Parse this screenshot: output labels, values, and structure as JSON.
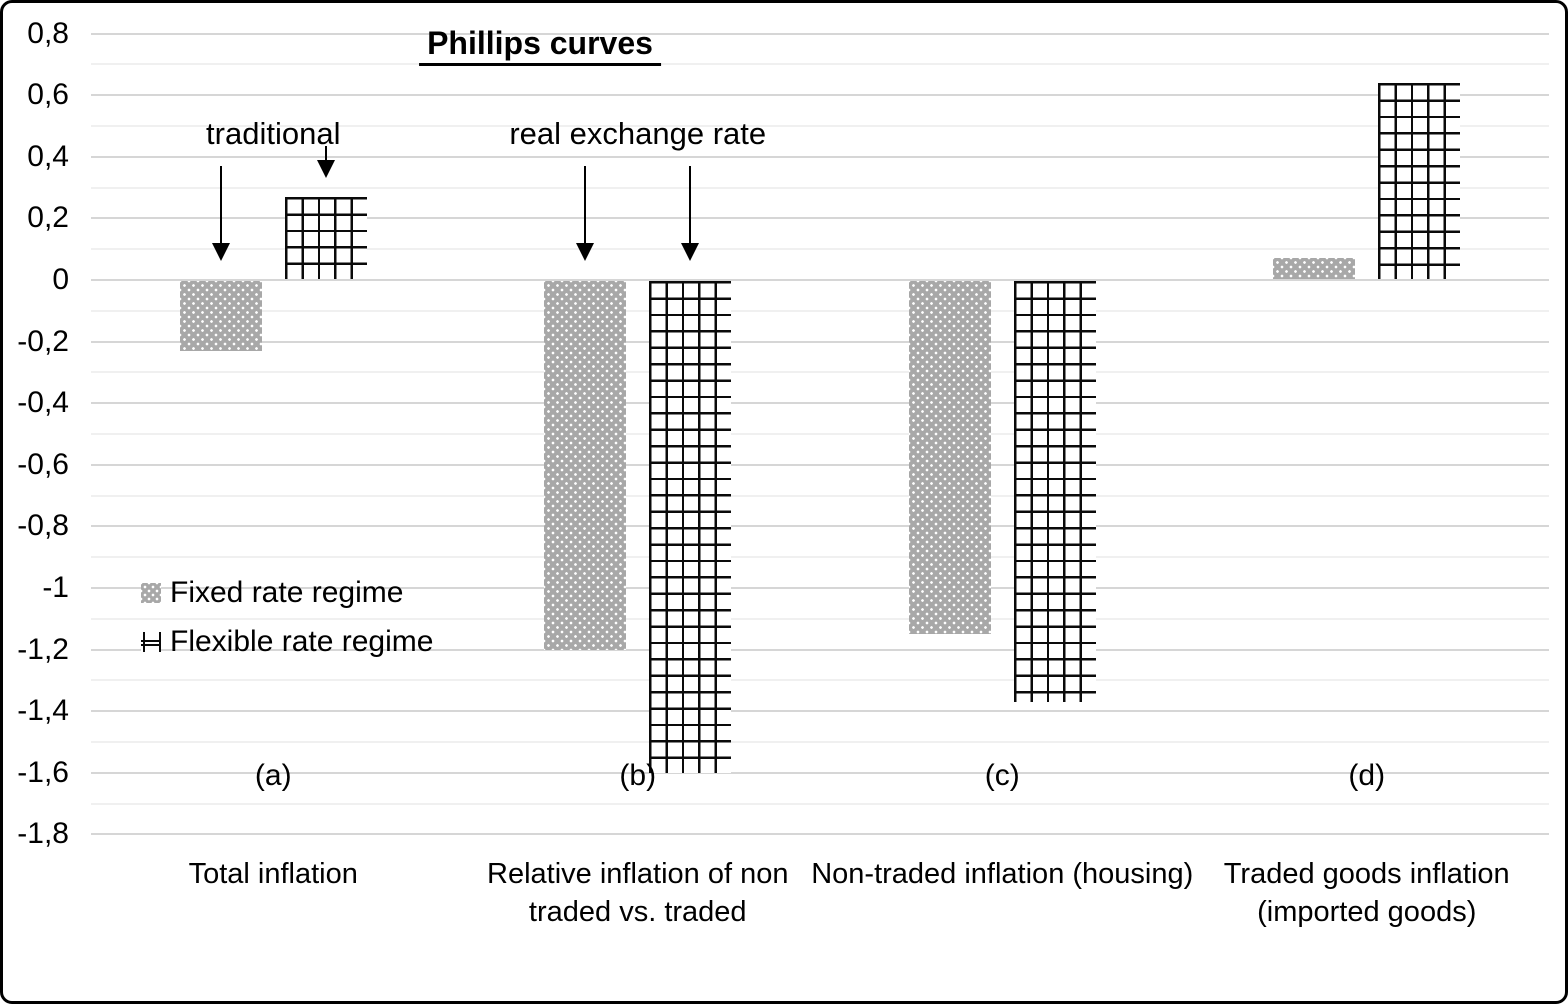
{
  "title": "Phillips curves",
  "legend": {
    "items": [
      {
        "label": "Fixed rate regime",
        "pattern": "dotted"
      },
      {
        "label": "Flexible rate regime",
        "pattern": "grid"
      }
    ]
  },
  "colors": {
    "bar_gray": "#a8a8a8",
    "pattern_line": "#0a0a0a",
    "grid_major": "#d6d6d6",
    "grid_minor": "#f0f0f0",
    "text": "#000000",
    "border": "#000000"
  },
  "chart_data": {
    "type": "bar",
    "title": "Phillips curves",
    "categories": [
      {
        "id": "a",
        "tag": "(a)",
        "label_lines": [
          "Total inflation"
        ]
      },
      {
        "id": "b",
        "tag": "(b)",
        "label_lines": [
          "Relative inflation of non",
          "traded vs. traded"
        ]
      },
      {
        "id": "c",
        "tag": "(c)",
        "label_lines": [
          "Non-traded inflation (housing)"
        ]
      },
      {
        "id": "d",
        "tag": "(d)",
        "label_lines": [
          "Traded goods inflation",
          "(imported goods)"
        ]
      }
    ],
    "series": [
      {
        "name": "Fixed rate regime",
        "pattern": "dotted",
        "values": [
          -0.23,
          -1.2,
          -1.15,
          0.07
        ]
      },
      {
        "name": "Flexible rate regime",
        "pattern": "grid",
        "values": [
          0.27,
          -1.6,
          -1.37,
          0.64
        ]
      }
    ],
    "ylim": [
      -1.8,
      0.8
    ],
    "yticks": {
      "major_step": 0.2,
      "minor_step": 0.1,
      "decimal_separator": ",",
      "labels": [
        "0,8",
        "0,6",
        "0,4",
        "0,2",
        "0",
        "-0,2",
        "-0,4",
        "-0,6",
        "-0,8",
        "-1",
        "-1,2",
        "-1,4",
        "-1,6",
        "-1,8"
      ]
    },
    "grid": true,
    "legend_position": "inside-left",
    "annotations": [
      {
        "text": "traditional",
        "anchor_category": "a",
        "arrows": [
          {
            "category": "a",
            "series": 0,
            "length": "long"
          },
          {
            "category": "a",
            "series": 1,
            "length": "short"
          }
        ]
      },
      {
        "text": "real exchange rate",
        "anchor_category": "b",
        "arrows": [
          {
            "category": "b",
            "series": 0,
            "length": "long"
          },
          {
            "category": "b",
            "series": 1,
            "length": "long"
          }
        ]
      }
    ]
  }
}
